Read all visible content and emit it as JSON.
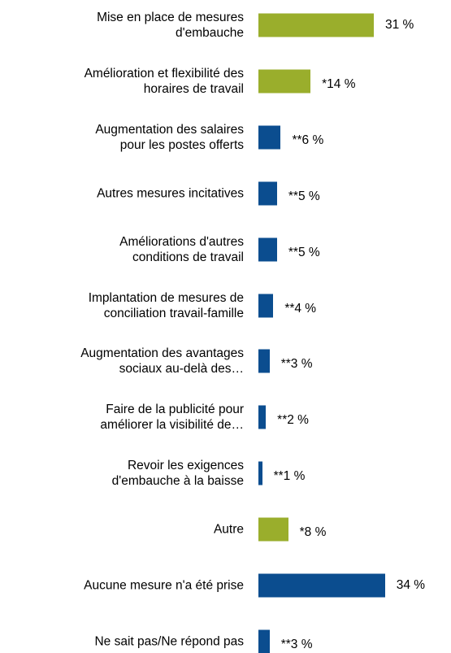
{
  "chart_data": {
    "type": "barh",
    "categories": [
      "Mise en place de mesures\nd'embauche",
      "Amélioration et flexibilité des\nhoraires de travail",
      "Augmentation des salaires\npour les postes offerts",
      "Autres mesures incitatives",
      "Améliorations d'autres\nconditions de travail",
      "Implantation de mesures de\nconciliation travail-famille",
      "Augmentation des avantages\nsociaux au-delà des…",
      "Faire de la publicité pour\naméliorer la visibilité de…",
      "Revoir les exigences\nd'embauche à la baisse",
      "Autre",
      "Aucune mesure n'a été prise",
      "Ne sait pas/Ne répond pas"
    ],
    "values": [
      31,
      14,
      6,
      5,
      5,
      4,
      3,
      2,
      1,
      8,
      34,
      3
    ],
    "value_labels": [
      "31 %",
      "*14 %",
      "**6 %",
      "**5 %",
      "**5 %",
      "**4 %",
      "**3 %",
      "**2 %",
      "**1 %",
      "*8 %",
      "34 %",
      "**3 %"
    ],
    "colors": [
      "#9aae2c",
      "#9aae2c",
      "#0b4d8f",
      "#0b4d8f",
      "#0b4d8f",
      "#0b4d8f",
      "#0b4d8f",
      "#0b4d8f",
      "#0b4d8f",
      "#9aae2c",
      "#0b4d8f",
      "#0b4d8f"
    ]
  }
}
